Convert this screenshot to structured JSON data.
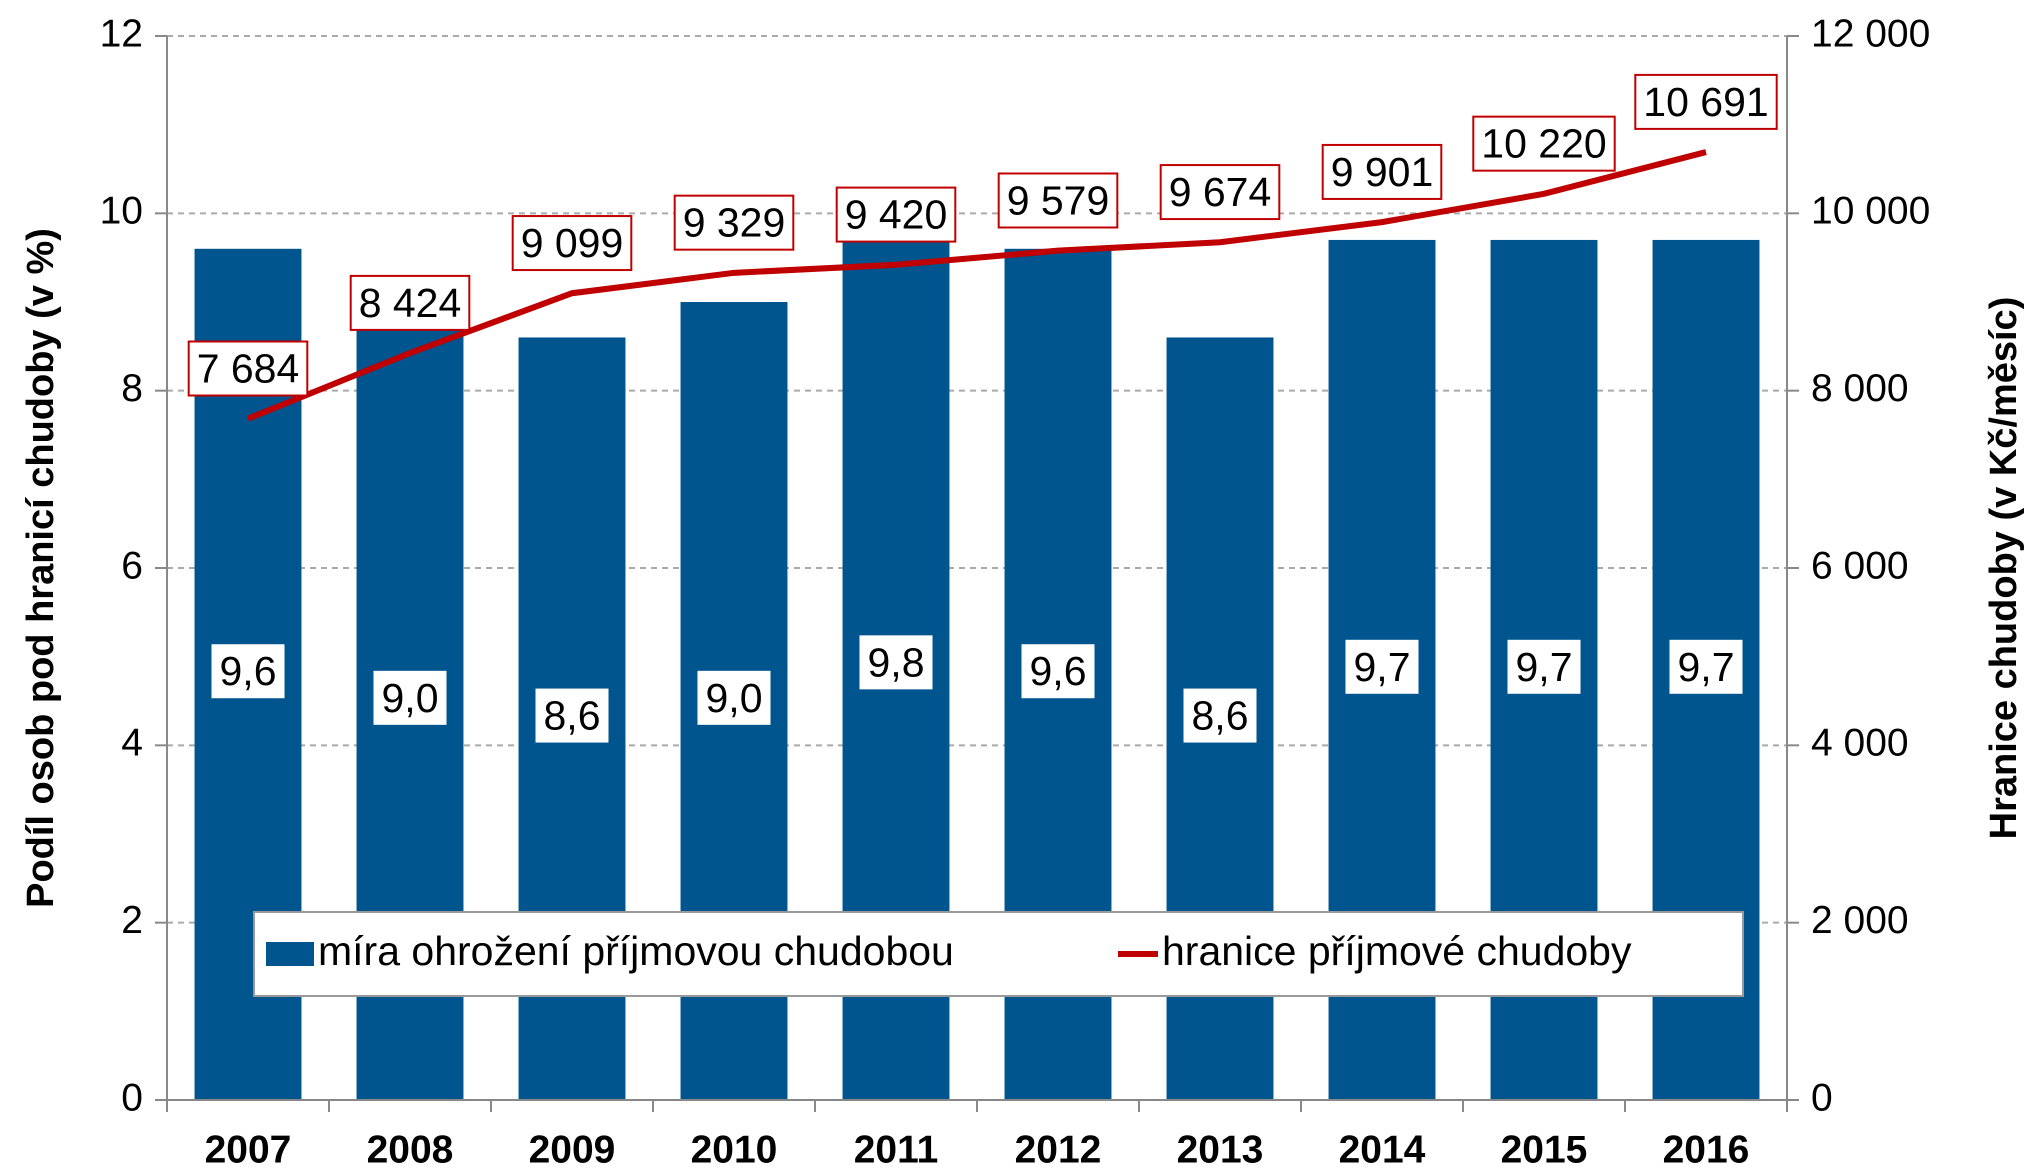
{
  "chart_data": {
    "type": "bar",
    "categories": [
      "2007",
      "2008",
      "2009",
      "2010",
      "2011",
      "2012",
      "2013",
      "2014",
      "2015",
      "2016"
    ],
    "series": [
      {
        "name": "míra ohrožení příjmovou chudobou",
        "color": "#00558f",
        "type": "bar",
        "values": [
          9.6,
          9.0,
          8.6,
          9.0,
          9.8,
          9.6,
          8.6,
          9.7,
          9.7,
          9.7
        ],
        "value_labels": [
          "9,6",
          "9,0",
          "8,6",
          "9,0",
          "9,8",
          "9,6",
          "8,6",
          "9,7",
          "9,7",
          "9,7"
        ]
      },
      {
        "name": "hranice příjmové chudoby",
        "color": "#c00000",
        "type": "line",
        "axis": "y2",
        "values": [
          7684,
          8424,
          9099,
          9329,
          9420,
          9579,
          9674,
          9901,
          10220,
          10691
        ],
        "value_labels": [
          "7 684",
          "8 424",
          "9 099",
          "9 329",
          "9 420",
          "9 579",
          "9 674",
          "9 901",
          "10 220",
          "10 691"
        ]
      }
    ],
    "ylabel": "Podíl osob pod hranicí chudoby (v %)",
    "y2label": "Hranice chudoby (v Kč/měsíc)",
    "ylim": [
      0,
      12
    ],
    "yticks": [
      0,
      2,
      4,
      6,
      8,
      10,
      12
    ],
    "y2lim": [
      0,
      12000
    ],
    "y2ticks": [
      {
        "value": 0,
        "label": "0"
      },
      {
        "value": 2000,
        "label": "2 000"
      },
      {
        "value": 4000,
        "label": "4 000"
      },
      {
        "value": 6000,
        "label": "6 000"
      },
      {
        "value": 8000,
        "label": "8 000"
      },
      {
        "value": 10000,
        "label": "10 000"
      },
      {
        "value": 12000,
        "label": "12 000"
      }
    ],
    "grid": true,
    "legend": "bottom"
  }
}
